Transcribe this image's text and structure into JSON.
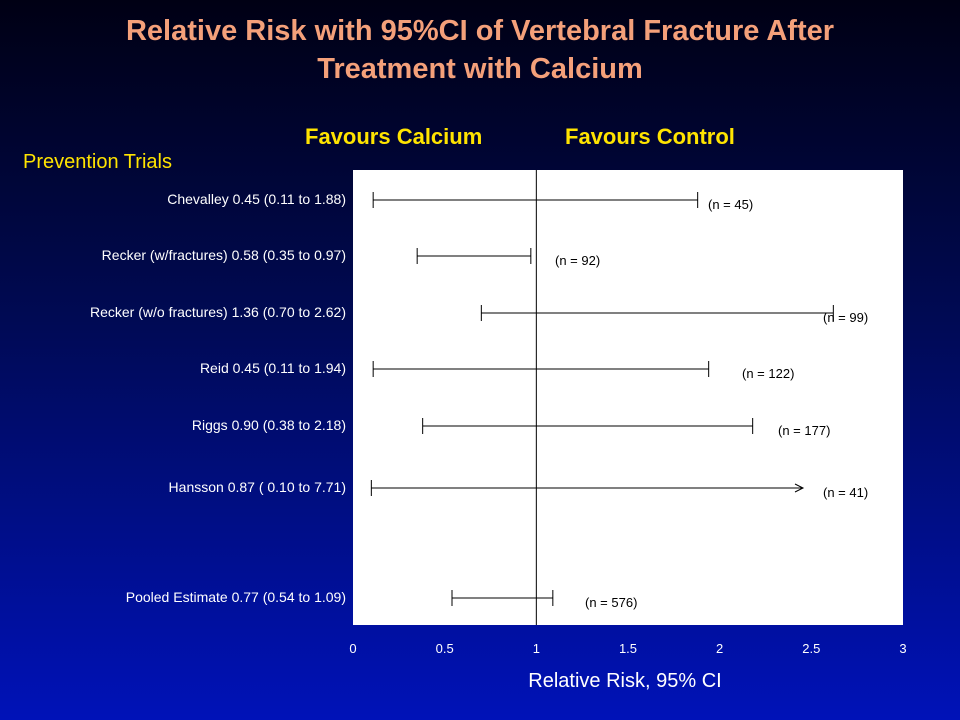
{
  "title_line1": "Relative Risk with 95%CI of Vertebral Fracture After",
  "title_line2": "Treatment with Calcium",
  "favours_left": "Favours Calcium",
  "favours_right": "Favours Control",
  "section_label": "Prevention Trials",
  "colors": {
    "title": "#f4a07a",
    "favours": "#ffe400",
    "marker": "#f08a70",
    "plot_bg": "#ffffff",
    "background_top": "#000014",
    "background_bottom": "#0012b8"
  },
  "chart_data": {
    "type": "forest",
    "xlabel": "Relative Risk, 95% CI",
    "xlim": [
      0,
      3
    ],
    "xticks": [
      "0",
      "0.5",
      "1",
      "1.5",
      "2",
      "2.5",
      "3"
    ],
    "reference_line": 1,
    "marker_glyph": "",
    "rows": [
      {
        "label": "Chevalley 0.45 (0.11 to 1.88)",
        "estimate": 0.45,
        "lower": 0.11,
        "upper": 1.88,
        "n_label": "(n = 45)",
        "arrow": false
      },
      {
        "label": "Recker (w/fractures) 0.58 (0.35 to 0.97)",
        "estimate": 0.58,
        "lower": 0.35,
        "upper": 0.97,
        "n_label": "(n = 92)",
        "arrow": false
      },
      {
        "label": "Recker (w/o fractures) 1.36 (0.70 to 2.62)",
        "estimate": 1.36,
        "lower": 0.7,
        "upper": 2.62,
        "n_label": "(n = 99)",
        "arrow": false
      },
      {
        "label": "Reid 0.45 (0.11 to 1.94)",
        "estimate": 0.45,
        "lower": 0.11,
        "upper": 1.94,
        "n_label": "(n = 122)",
        "arrow": false
      },
      {
        "label": "Riggs 0.90 (0.38 to 2.18)",
        "estimate": 0.9,
        "lower": 0.38,
        "upper": 2.18,
        "n_label": "(n = 177)",
        "arrow": false
      },
      {
        "label": "Hansson 0.87 ( 0.10 to 7.71)",
        "estimate": 0.87,
        "lower": 0.1,
        "upper": 7.71,
        "n_label": "(n = 41)",
        "arrow": true
      },
      {
        "label": "Pooled Estimate 0.77 (0.54 to 1.09)",
        "estimate": 0.77,
        "lower": 0.54,
        "upper": 1.09,
        "n_label": "(n = 576)",
        "arrow": false
      }
    ]
  }
}
